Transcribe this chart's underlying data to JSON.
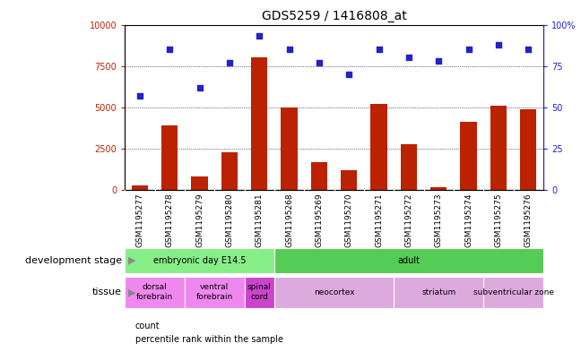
{
  "title": "GDS5259 / 1416808_at",
  "samples": [
    "GSM1195277",
    "GSM1195278",
    "GSM1195279",
    "GSM1195280",
    "GSM1195281",
    "GSM1195268",
    "GSM1195269",
    "GSM1195270",
    "GSM1195271",
    "GSM1195272",
    "GSM1195273",
    "GSM1195274",
    "GSM1195275",
    "GSM1195276"
  ],
  "counts": [
    300,
    3900,
    800,
    2300,
    8000,
    5000,
    1700,
    1200,
    5200,
    2800,
    200,
    4100,
    5100,
    4900
  ],
  "percentiles": [
    57,
    85,
    62,
    77,
    93,
    85,
    77,
    70,
    85,
    80,
    78,
    85,
    88,
    85
  ],
  "ylim_left": [
    0,
    10000
  ],
  "ylim_right": [
    0,
    100
  ],
  "yticks_left": [
    0,
    2500,
    5000,
    7500,
    10000
  ],
  "yticks_right": [
    0,
    25,
    50,
    75,
    100
  ],
  "bar_color": "#bb2200",
  "dot_color": "#2222cc",
  "dev_stage_groups": [
    {
      "label": "embryonic day E14.5",
      "start": 0,
      "end": 5,
      "color": "#88ee88"
    },
    {
      "label": "adult",
      "start": 5,
      "end": 14,
      "color": "#55cc55"
    }
  ],
  "tissue_groups": [
    {
      "label": "dorsal\nforebrain",
      "start": 0,
      "end": 2,
      "color": "#ee88ee"
    },
    {
      "label": "ventral\nforebrain",
      "start": 2,
      "end": 4,
      "color": "#ee88ee"
    },
    {
      "label": "spinal\ncord",
      "start": 4,
      "end": 5,
      "color": "#cc44cc"
    },
    {
      "label": "neocortex",
      "start": 5,
      "end": 9,
      "color": "#ddaadd"
    },
    {
      "label": "striatum",
      "start": 9,
      "end": 12,
      "color": "#ddaadd"
    },
    {
      "label": "subventricular zone",
      "start": 12,
      "end": 14,
      "color": "#ddaadd"
    }
  ],
  "dev_stage_label": "development stage",
  "tissue_label": "tissue",
  "legend_count_label": "count",
  "legend_pct_label": "percentile rank within the sample",
  "bg_color": "#ffffff",
  "plot_bg_color": "#ffffff",
  "xticklabel_bg": "#cccccc",
  "grid_color": "#000000",
  "title_fontsize": 10,
  "tick_fontsize": 7,
  "label_fontsize": 8
}
